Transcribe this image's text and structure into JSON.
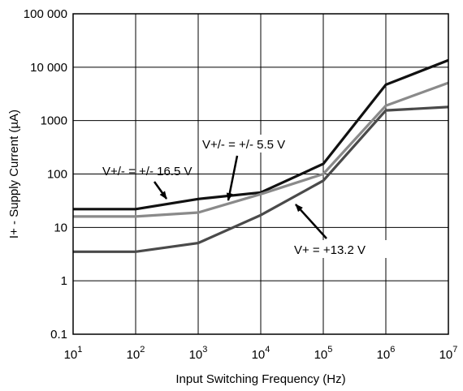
{
  "chart_data": {
    "type": "line",
    "title": "",
    "xlabel": "Input Switching Frequency (Hz)",
    "ylabel": "I+ - Supply Current (µA)",
    "xscale": "log",
    "yscale": "log",
    "xlim": [
      10,
      10000000
    ],
    "ylim": [
      0.1,
      100000
    ],
    "grid": true,
    "x_tick_labels": [
      {
        "base": "10",
        "exp": "1"
      },
      {
        "base": "10",
        "exp": "2"
      },
      {
        "base": "10",
        "exp": "3"
      },
      {
        "base": "10",
        "exp": "4"
      },
      {
        "base": "10",
        "exp": "5"
      },
      {
        "base": "10",
        "exp": "6"
      },
      {
        "base": "10",
        "exp": "7"
      }
    ],
    "y_tick_labels": [
      "0.1",
      "1",
      "10",
      "100",
      "1000",
      "10 000",
      "100 000"
    ],
    "x": [
      10,
      100,
      1000,
      10000,
      100000,
      1000000,
      10000000
    ],
    "series": [
      {
        "name": "V+/- = +/- 16.5 V",
        "color": "#111111",
        "values": [
          22,
          22,
          34,
          45,
          155,
          4700,
          13500
        ]
      },
      {
        "name": "V+/- = +/- 5.5 V",
        "color": "#8a8a8a",
        "values": [
          16,
          16,
          19,
          42,
          100,
          1900,
          5100
        ]
      },
      {
        "name": "V+ = +13.2 V",
        "color": "#4a4a4a",
        "values": [
          3.5,
          3.5,
          5.1,
          17,
          75,
          1550,
          1800
        ]
      }
    ],
    "annotations": [
      {
        "text": "V+/- = +/- 16.5 V",
        "series": 0
      },
      {
        "text": "V+/- = +/- 5.5 V",
        "series": 1
      },
      {
        "text": "V+ = +13.2 V",
        "series": 2
      }
    ]
  }
}
